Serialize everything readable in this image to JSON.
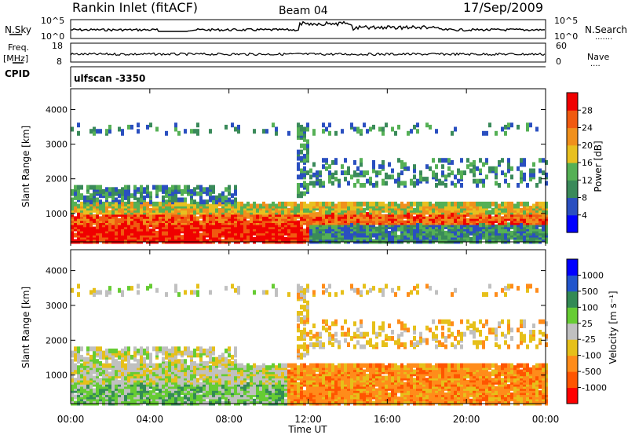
{
  "header": {
    "title": "Rankin Inlet (fitACF)",
    "beam": "Beam 04",
    "date": "17/Sep/2009"
  },
  "left_labels": {
    "nsky": "N.Sky",
    "freq": "Freq.",
    "freq_unit": "[MHz]",
    "cpid": "CPID"
  },
  "right_labels": {
    "nsearch": "N.Search",
    "nave": "Nave"
  },
  "cpid_value": "ulfscan -3350",
  "colors": {
    "power": [
      "#0000ff",
      "#2a4fc0",
      "#3a8a5a",
      "#55b055",
      "#e8c020",
      "#f0901c",
      "#f05a10",
      "#f00000"
    ],
    "velocity": [
      "#ff0000",
      "#ff5500",
      "#ff8c1a",
      "#e6c01a",
      "#c0c0c0",
      "#66cc33",
      "#338a55",
      "#2255cc",
      "#0000ff"
    ]
  },
  "chart_data": [
    {
      "type": "line",
      "name": "noise",
      "y_left_ticks": [
        "10^5",
        "10^0"
      ],
      "y_right_ticks": [
        "10^5",
        "10^0"
      ]
    },
    {
      "type": "line",
      "name": "frequency",
      "y_left_ticks": [
        "18",
        "8"
      ],
      "y_right_ticks": [
        "60",
        "0"
      ]
    },
    {
      "type": "heatmap",
      "name": "power",
      "ylabel": "Slant Range [km]",
      "yticks": [
        "1000",
        "2000",
        "3000",
        "4000"
      ],
      "ylim": [
        180,
        4600
      ],
      "colorbar_label": "Power [dB]",
      "colorbar_ticks": [
        "4",
        "8",
        "12",
        "16",
        "20",
        "24",
        "28"
      ]
    },
    {
      "type": "heatmap",
      "name": "velocity",
      "ylabel": "Slant Range [km]",
      "yticks": [
        "1000",
        "2000",
        "3000",
        "4000"
      ],
      "ylim": [
        180,
        4600
      ],
      "colorbar_label": "Velocity [m s⁻¹]",
      "colorbar_ticks": [
        "-1000",
        "-500",
        "-100",
        "-25",
        "25",
        "100",
        "500",
        "1000"
      ]
    }
  ],
  "time_axis": {
    "ticks": [
      "00:00",
      "04:00",
      "08:00",
      "12:00",
      "16:00",
      "20:00",
      "00:00"
    ],
    "label": "Time UT"
  }
}
